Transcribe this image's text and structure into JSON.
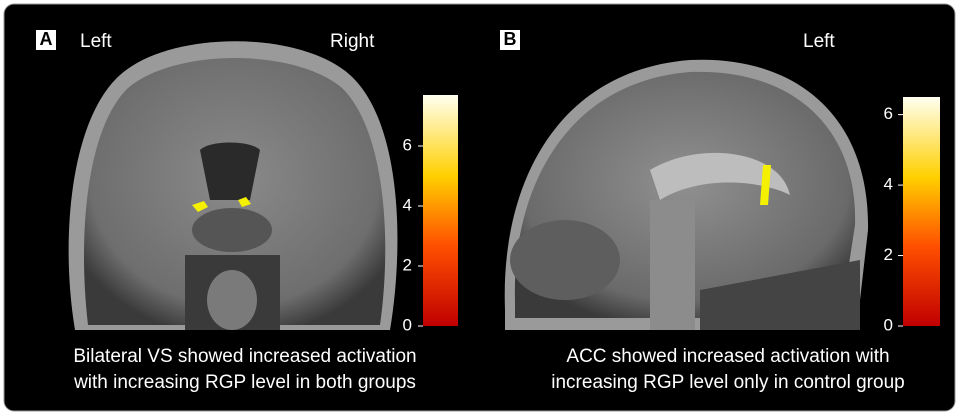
{
  "panels": [
    {
      "label": "A",
      "orientation": [
        "Left",
        "Right"
      ],
      "colorbar": {
        "range": [
          0,
          7.7
        ],
        "ticks": [
          0,
          2,
          4,
          6
        ]
      },
      "caption": [
        "Bilateral VS showed increased activation",
        "with increasing RGP level in both groups"
      ]
    },
    {
      "label": "B",
      "orientation": [
        "Left"
      ],
      "colorbar": {
        "range": [
          0,
          6.5
        ],
        "ticks": [
          0,
          2,
          4,
          6
        ]
      },
      "caption": [
        "ACC showed increased activation with",
        "increasing RGP level only in control group"
      ]
    }
  ]
}
